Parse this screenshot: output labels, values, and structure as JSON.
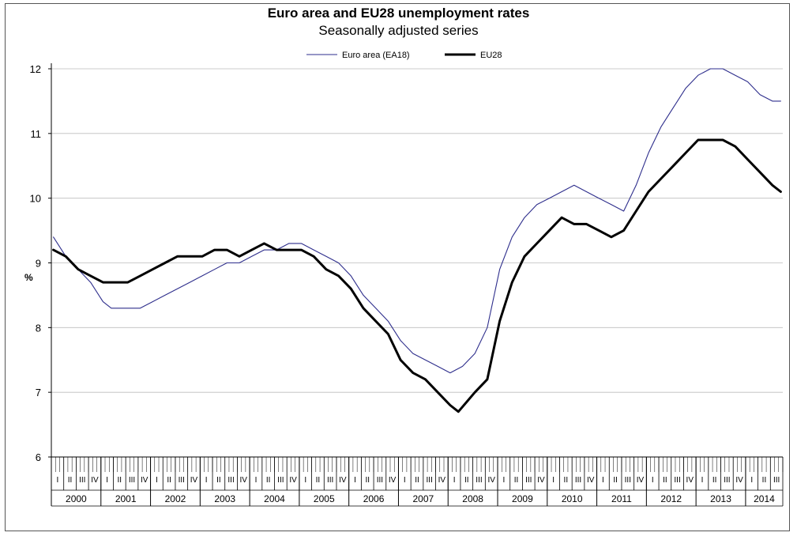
{
  "chart_data": {
    "type": "line",
    "title": "Euro area and EU28 unemployment rates",
    "subtitle": "Seasonally adjusted series",
    "ylabel": "%",
    "xlabel": "",
    "ylim": [
      6,
      12
    ],
    "yticks": [
      6,
      7,
      8,
      9,
      10,
      11,
      12
    ],
    "grid": true,
    "legend_position": "top-center",
    "x_start": "2000-01",
    "x_end": "2014-09",
    "quarter_labels": [
      "I",
      "II",
      "III",
      "IV"
    ],
    "years": [
      "2000",
      "2001",
      "2002",
      "2003",
      "2004",
      "2005",
      "2006",
      "2007",
      "2008",
      "2009",
      "2010",
      "2011",
      "2012",
      "2013",
      "2014"
    ],
    "series": [
      {
        "name": "Euro area (EA18)",
        "color": "#2e2e8c",
        "stroke_style": "thin",
        "points": [
          [
            "2000-01",
            9.4
          ],
          [
            "2000-04",
            9.1
          ],
          [
            "2000-07",
            8.9
          ],
          [
            "2000-10",
            8.7
          ],
          [
            "2001-01",
            8.4
          ],
          [
            "2001-03",
            8.3
          ],
          [
            "2001-07",
            8.3
          ],
          [
            "2001-10",
            8.3
          ],
          [
            "2002-01",
            8.4
          ],
          [
            "2002-04",
            8.5
          ],
          [
            "2002-07",
            8.6
          ],
          [
            "2002-10",
            8.7
          ],
          [
            "2003-01",
            8.8
          ],
          [
            "2003-04",
            8.9
          ],
          [
            "2003-07",
            9.0
          ],
          [
            "2003-10",
            9.0
          ],
          [
            "2004-01",
            9.1
          ],
          [
            "2004-04",
            9.2
          ],
          [
            "2004-07",
            9.2
          ],
          [
            "2004-10",
            9.3
          ],
          [
            "2005-01",
            9.3
          ],
          [
            "2005-04",
            9.2
          ],
          [
            "2005-07",
            9.1
          ],
          [
            "2005-10",
            9.0
          ],
          [
            "2006-01",
            8.8
          ],
          [
            "2006-04",
            8.5
          ],
          [
            "2006-07",
            8.3
          ],
          [
            "2006-10",
            8.1
          ],
          [
            "2007-01",
            7.8
          ],
          [
            "2007-04",
            7.6
          ],
          [
            "2007-07",
            7.5
          ],
          [
            "2007-10",
            7.4
          ],
          [
            "2008-01",
            7.3
          ],
          [
            "2008-04",
            7.4
          ],
          [
            "2008-07",
            7.6
          ],
          [
            "2008-10",
            8.0
          ],
          [
            "2009-01",
            8.9
          ],
          [
            "2009-04",
            9.4
          ],
          [
            "2009-07",
            9.7
          ],
          [
            "2009-10",
            9.9
          ],
          [
            "2010-01",
            10.0
          ],
          [
            "2010-04",
            10.1
          ],
          [
            "2010-07",
            10.2
          ],
          [
            "2010-10",
            10.1
          ],
          [
            "2011-01",
            10.0
          ],
          [
            "2011-04",
            9.9
          ],
          [
            "2011-07",
            9.8
          ],
          [
            "2011-10",
            10.2
          ],
          [
            "2012-01",
            10.7
          ],
          [
            "2012-04",
            11.1
          ],
          [
            "2012-07",
            11.4
          ],
          [
            "2012-10",
            11.7
          ],
          [
            "2013-01",
            11.9
          ],
          [
            "2013-04",
            12.0
          ],
          [
            "2013-07",
            12.0
          ],
          [
            "2013-10",
            11.9
          ],
          [
            "2014-01",
            11.8
          ],
          [
            "2014-04",
            11.6
          ],
          [
            "2014-07",
            11.5
          ],
          [
            "2014-09",
            11.5
          ]
        ]
      },
      {
        "name": "EU28",
        "color": "#000000",
        "stroke_style": "thick",
        "points": [
          [
            "2000-01",
            9.2
          ],
          [
            "2000-04",
            9.1
          ],
          [
            "2000-07",
            8.9
          ],
          [
            "2000-10",
            8.8
          ],
          [
            "2001-01",
            8.7
          ],
          [
            "2001-04",
            8.7
          ],
          [
            "2001-07",
            8.7
          ],
          [
            "2001-10",
            8.8
          ],
          [
            "2002-01",
            8.9
          ],
          [
            "2002-04",
            9.0
          ],
          [
            "2002-07",
            9.1
          ],
          [
            "2002-10",
            9.1
          ],
          [
            "2003-01",
            9.1
          ],
          [
            "2003-04",
            9.2
          ],
          [
            "2003-07",
            9.2
          ],
          [
            "2003-10",
            9.1
          ],
          [
            "2004-01",
            9.2
          ],
          [
            "2004-04",
            9.3
          ],
          [
            "2004-07",
            9.2
          ],
          [
            "2004-10",
            9.2
          ],
          [
            "2005-01",
            9.2
          ],
          [
            "2005-04",
            9.1
          ],
          [
            "2005-07",
            8.9
          ],
          [
            "2005-10",
            8.8
          ],
          [
            "2006-01",
            8.6
          ],
          [
            "2006-04",
            8.3
          ],
          [
            "2006-07",
            8.1
          ],
          [
            "2006-10",
            7.9
          ],
          [
            "2007-01",
            7.5
          ],
          [
            "2007-04",
            7.3
          ],
          [
            "2007-07",
            7.2
          ],
          [
            "2007-10",
            7.0
          ],
          [
            "2008-01",
            6.8
          ],
          [
            "2008-03",
            6.7
          ],
          [
            "2008-07",
            7.0
          ],
          [
            "2008-10",
            7.2
          ],
          [
            "2009-01",
            8.1
          ],
          [
            "2009-04",
            8.7
          ],
          [
            "2009-07",
            9.1
          ],
          [
            "2009-10",
            9.3
          ],
          [
            "2010-01",
            9.5
          ],
          [
            "2010-04",
            9.7
          ],
          [
            "2010-07",
            9.6
          ],
          [
            "2010-10",
            9.6
          ],
          [
            "2011-01",
            9.5
          ],
          [
            "2011-04",
            9.4
          ],
          [
            "2011-07",
            9.5
          ],
          [
            "2011-10",
            9.8
          ],
          [
            "2012-01",
            10.1
          ],
          [
            "2012-04",
            10.3
          ],
          [
            "2012-07",
            10.5
          ],
          [
            "2012-10",
            10.7
          ],
          [
            "2013-01",
            10.9
          ],
          [
            "2013-04",
            10.9
          ],
          [
            "2013-07",
            10.9
          ],
          [
            "2013-10",
            10.8
          ],
          [
            "2014-01",
            10.6
          ],
          [
            "2014-04",
            10.4
          ],
          [
            "2014-07",
            10.2
          ],
          [
            "2014-09",
            10.1
          ]
        ]
      }
    ]
  }
}
